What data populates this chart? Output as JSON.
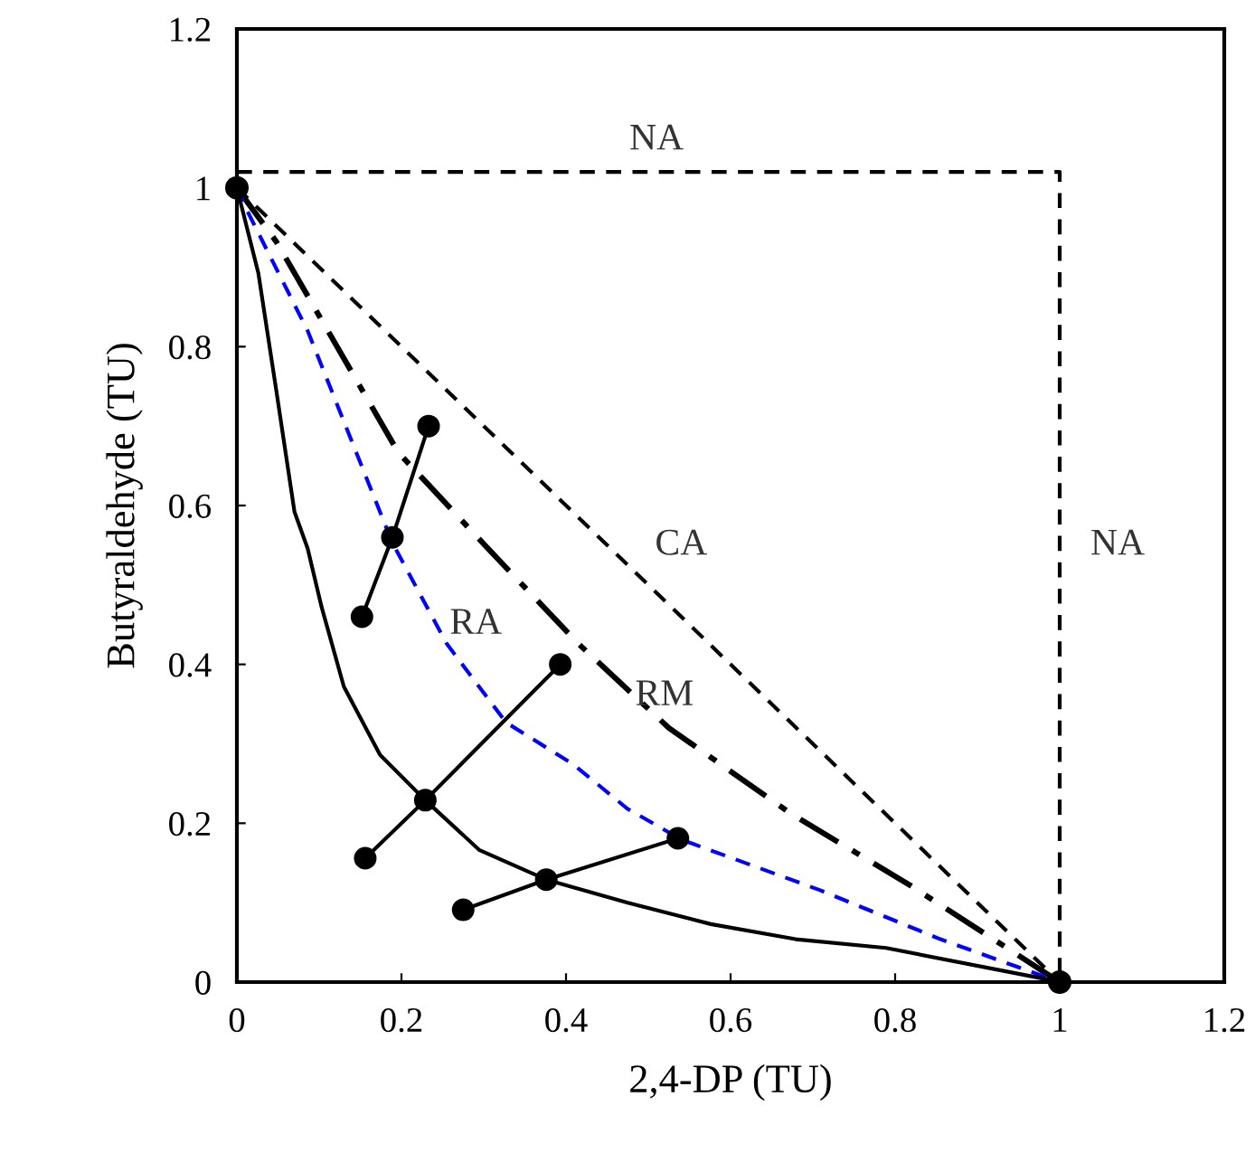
{
  "chart_data": {
    "type": "line",
    "xlabel": "2,4-DP (TU)",
    "ylabel": "Butyraldehyde (TU)",
    "xlim": [
      0,
      1.2
    ],
    "ylim": [
      0,
      1.2
    ],
    "xticks": [
      0,
      0.2,
      0.4,
      0.6,
      0.8,
      1,
      1.2
    ],
    "yticks": [
      0,
      0.2,
      0.4,
      0.6,
      0.8,
      1,
      1.2
    ],
    "grid": false,
    "series": [
      {
        "x": [
          0,
          1,
          1
        ],
        "values": [
          1.02,
          1.02,
          0
        ],
        "color": "#000000",
        "line_style": "dashed",
        "marker": "none"
      },
      {
        "x": [
          0,
          1
        ],
        "values": [
          1,
          0
        ],
        "color": "#000000",
        "line_style": "dashed",
        "marker": "none"
      },
      {
        "x": [
          0,
          0.048,
          0.196,
          0.305,
          0.415,
          0.525,
          0.672,
          0.818,
          1
        ],
        "values": [
          1,
          0.932,
          0.667,
          0.546,
          0.426,
          0.32,
          0.213,
          0.122,
          0
        ],
        "color": "#000000",
        "line_style": "dashdot",
        "marker": "none"
      },
      {
        "x": [
          0,
          0.013,
          0.086,
          0.145,
          0.189,
          0.255,
          0.327,
          0.409,
          0.475,
          0.541,
          0.708,
          0.855,
          1
        ],
        "values": [
          1,
          0.97,
          0.82,
          0.667,
          0.553,
          0.426,
          0.327,
          0.274,
          0.218,
          0.179,
          0.116,
          0.054,
          0
        ],
        "color": "#0000ff",
        "line_style": "dashed",
        "marker": "none"
      },
      {
        "x": [
          0,
          0.026,
          0.048,
          0.07,
          0.086,
          0.103,
          0.13,
          0.174,
          0.229,
          0.295,
          0.376,
          0.475,
          0.576,
          0.679,
          0.789,
          0.987,
          1
        ],
        "values": [
          1,
          0.893,
          0.744,
          0.592,
          0.546,
          0.472,
          0.372,
          0.286,
          0.229,
          0.166,
          0.129,
          0.1,
          0.073,
          0.054,
          0.043,
          0.003,
          0
        ],
        "color": "#000000",
        "line_style": "solid",
        "marker": "none"
      },
      {
        "x": [
          0.233,
          0.189,
          0.152
        ],
        "values": [
          0.7,
          0.56,
          0.46
        ],
        "color": "#000000",
        "line_style": "solid",
        "marker": "circle"
      },
      {
        "x": [
          0.393,
          0.229,
          0.156
        ],
        "values": [
          0.4,
          0.229,
          0.156
        ],
        "color": "#000000",
        "line_style": "solid",
        "marker": "circle"
      },
      {
        "x": [
          0.536,
          0.376,
          0.275
        ],
        "values": [
          0.181,
          0.129,
          0.091
        ],
        "color": "#000000",
        "line_style": "solid",
        "marker": "circle"
      },
      {
        "type": "scatter",
        "x": [
          0,
          1
        ],
        "values": [
          1,
          0
        ],
        "color": "#000000",
        "marker": "circle"
      }
    ],
    "annotations": [
      "NA",
      "CA",
      "NA",
      "RA",
      "RM"
    ]
  }
}
